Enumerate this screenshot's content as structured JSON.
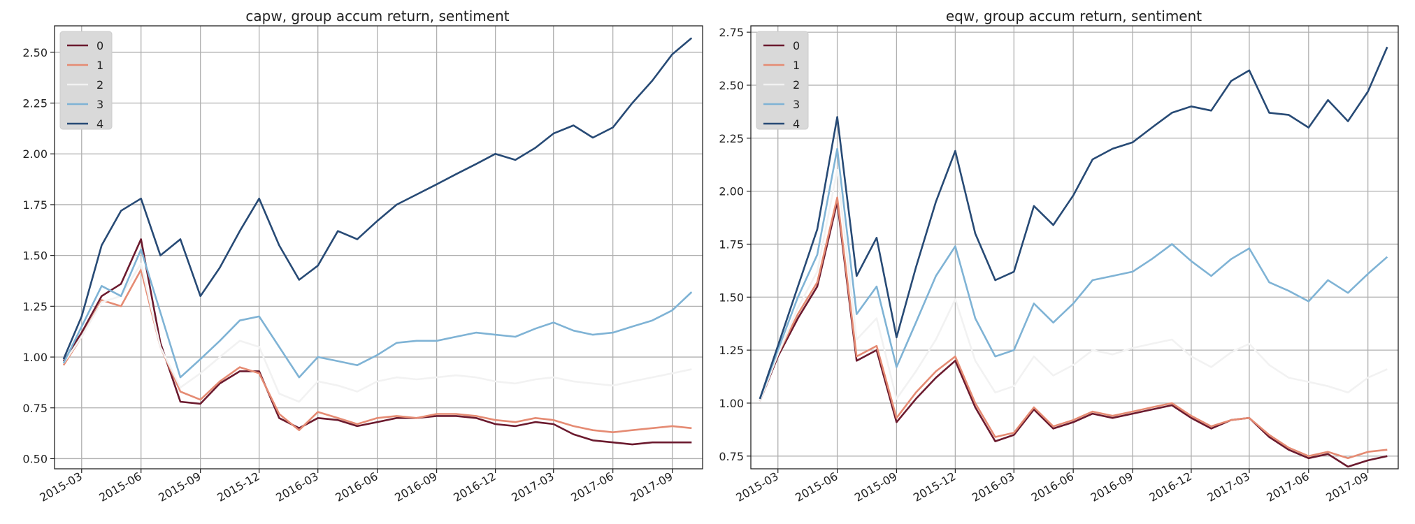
{
  "chart_data": [
    {
      "type": "line",
      "title": "capw, group accum return, sentiment",
      "x_dates": [
        "2015-02",
        "2015-03",
        "2015-04",
        "2015-05",
        "2015-06",
        "2015-07",
        "2015-08",
        "2015-09",
        "2015-10",
        "2015-11",
        "2015-12",
        "2016-01",
        "2016-02",
        "2016-03",
        "2016-04",
        "2016-05",
        "2016-06",
        "2016-07",
        "2016-08",
        "2016-09",
        "2016-10",
        "2016-11",
        "2016-12",
        "2017-01",
        "2017-02",
        "2017-03",
        "2017-04",
        "2017-05",
        "2017-06",
        "2017-07",
        "2017-08",
        "2017-09",
        "2017-10"
      ],
      "x_ticks": [
        "2015-03",
        "2015-06",
        "2015-09",
        "2015-12",
        "2016-03",
        "2016-06",
        "2016-09",
        "2016-12",
        "2017-03",
        "2017-06",
        "2017-09"
      ],
      "ylim": [
        0.45,
        2.63
      ],
      "y_ticks": [
        "0.50",
        "0.75",
        "1.00",
        "1.25",
        "1.50",
        "1.75",
        "2.00",
        "2.25",
        "2.50"
      ],
      "legend": [
        "0",
        "1",
        "2",
        "3",
        "4"
      ],
      "legend_position": "upper-left",
      "grid": true,
      "series": [
        {
          "name": "0",
          "color": "#6b1a2e",
          "values": [
            0.98,
            1.12,
            1.3,
            1.36,
            1.58,
            1.07,
            0.78,
            0.77,
            0.87,
            0.93,
            0.93,
            0.7,
            0.65,
            0.7,
            0.69,
            0.66,
            0.68,
            0.7,
            0.7,
            0.71,
            0.71,
            0.7,
            0.67,
            0.66,
            0.68,
            0.67,
            0.62,
            0.59,
            0.58,
            0.57,
            0.58,
            0.58,
            0.58
          ]
        },
        {
          "name": "1",
          "color": "#e58b73",
          "values": [
            0.96,
            1.1,
            1.28,
            1.25,
            1.43,
            1.05,
            0.83,
            0.79,
            0.88,
            0.95,
            0.92,
            0.72,
            0.64,
            0.73,
            0.7,
            0.67,
            0.7,
            0.71,
            0.7,
            0.72,
            0.72,
            0.71,
            0.69,
            0.68,
            0.7,
            0.69,
            0.66,
            0.64,
            0.63,
            0.64,
            0.65,
            0.66,
            0.65
          ]
        },
        {
          "name": "2",
          "color": "#f2f2f2",
          "values": [
            0.97,
            1.1,
            1.27,
            1.3,
            1.46,
            1.05,
            0.85,
            0.92,
            1.0,
            1.08,
            1.05,
            0.82,
            0.78,
            0.88,
            0.86,
            0.83,
            0.88,
            0.9,
            0.89,
            0.9,
            0.91,
            0.9,
            0.88,
            0.87,
            0.89,
            0.9,
            0.88,
            0.87,
            0.86,
            0.88,
            0.9,
            0.92,
            0.94
          ]
        },
        {
          "name": "3",
          "color": "#7fb3d5",
          "values": [
            0.97,
            1.15,
            1.35,
            1.3,
            1.53,
            1.22,
            0.9,
            0.99,
            1.08,
            1.18,
            1.2,
            1.05,
            0.9,
            1.0,
            0.98,
            0.96,
            1.01,
            1.07,
            1.08,
            1.08,
            1.1,
            1.12,
            1.11,
            1.1,
            1.14,
            1.17,
            1.13,
            1.11,
            1.12,
            1.15,
            1.18,
            1.23,
            1.32
          ]
        },
        {
          "name": "4",
          "color": "#274a75",
          "values": [
            0.99,
            1.2,
            1.55,
            1.72,
            1.78,
            1.5,
            1.58,
            1.3,
            1.44,
            1.62,
            1.78,
            1.55,
            1.38,
            1.45,
            1.62,
            1.58,
            1.67,
            1.75,
            1.8,
            1.85,
            1.9,
            1.95,
            2.0,
            1.97,
            2.03,
            2.1,
            2.14,
            2.08,
            2.13,
            2.25,
            2.36,
            2.49,
            2.57
          ]
        }
      ]
    },
    {
      "type": "line",
      "title": "eqw, group accum return, sentiment",
      "x_dates": [
        "2015-02",
        "2015-03",
        "2015-04",
        "2015-05",
        "2015-06",
        "2015-07",
        "2015-08",
        "2015-09",
        "2015-10",
        "2015-11",
        "2015-12",
        "2016-01",
        "2016-02",
        "2016-03",
        "2016-04",
        "2016-05",
        "2016-06",
        "2016-07",
        "2016-08",
        "2016-09",
        "2016-10",
        "2016-11",
        "2016-12",
        "2017-01",
        "2017-02",
        "2017-03",
        "2017-04",
        "2017-05",
        "2017-06",
        "2017-07",
        "2017-08",
        "2017-09",
        "2017-10"
      ],
      "x_ticks": [
        "2015-03",
        "2015-06",
        "2015-09",
        "2015-12",
        "2016-03",
        "2016-06",
        "2016-09",
        "2016-12",
        "2017-03",
        "2017-06",
        "2017-09"
      ],
      "ylim": [
        0.69,
        2.78
      ],
      "y_ticks": [
        "0.75",
        "1.00",
        "1.25",
        "1.50",
        "1.75",
        "2.00",
        "2.25",
        "2.50",
        "2.75"
      ],
      "legend": [
        "0",
        "1",
        "2",
        "3",
        "4"
      ],
      "legend_position": "upper-left",
      "grid": true,
      "series": [
        {
          "name": "0",
          "color": "#6b1a2e",
          "values": [
            1.01,
            1.22,
            1.4,
            1.55,
            1.95,
            1.2,
            1.25,
            0.91,
            1.02,
            1.12,
            1.2,
            0.98,
            0.82,
            0.85,
            0.97,
            0.88,
            0.91,
            0.95,
            0.93,
            0.95,
            0.97,
            0.99,
            0.93,
            0.88,
            0.92,
            0.93,
            0.84,
            0.78,
            0.74,
            0.76,
            0.7,
            0.73,
            0.75
          ]
        },
        {
          "name": "1",
          "color": "#e58b73",
          "values": [
            1.01,
            1.23,
            1.42,
            1.57,
            1.97,
            1.22,
            1.27,
            0.93,
            1.05,
            1.15,
            1.22,
            1.0,
            0.84,
            0.86,
            0.98,
            0.89,
            0.92,
            0.96,
            0.94,
            0.96,
            0.98,
            1.0,
            0.94,
            0.89,
            0.92,
            0.93,
            0.85,
            0.79,
            0.75,
            0.77,
            0.74,
            0.77,
            0.78
          ]
        },
        {
          "name": "2",
          "color": "#f2f2f2",
          "values": [
            1.01,
            1.23,
            1.45,
            1.62,
            2.1,
            1.3,
            1.4,
            1.02,
            1.15,
            1.3,
            1.49,
            1.2,
            1.05,
            1.08,
            1.22,
            1.13,
            1.18,
            1.25,
            1.23,
            1.26,
            1.28,
            1.3,
            1.22,
            1.17,
            1.24,
            1.28,
            1.18,
            1.12,
            1.1,
            1.08,
            1.05,
            1.12,
            1.16
          ]
        },
        {
          "name": "3",
          "color": "#7fb3d5",
          "values": [
            1.02,
            1.25,
            1.5,
            1.7,
            2.2,
            1.42,
            1.55,
            1.17,
            1.38,
            1.6,
            1.74,
            1.4,
            1.22,
            1.25,
            1.47,
            1.38,
            1.47,
            1.58,
            1.6,
            1.62,
            1.68,
            1.75,
            1.67,
            1.6,
            1.68,
            1.73,
            1.57,
            1.53,
            1.48,
            1.58,
            1.52,
            1.61,
            1.69
          ]
        },
        {
          "name": "4",
          "color": "#274a75",
          "values": [
            1.02,
            1.27,
            1.55,
            1.82,
            2.35,
            1.6,
            1.78,
            1.31,
            1.64,
            1.95,
            2.19,
            1.8,
            1.58,
            1.62,
            1.93,
            1.84,
            1.98,
            2.15,
            2.2,
            2.23,
            2.3,
            2.37,
            2.4,
            2.38,
            2.52,
            2.57,
            2.37,
            2.36,
            2.3,
            2.43,
            2.33,
            2.47,
            2.68
          ]
        }
      ]
    }
  ]
}
